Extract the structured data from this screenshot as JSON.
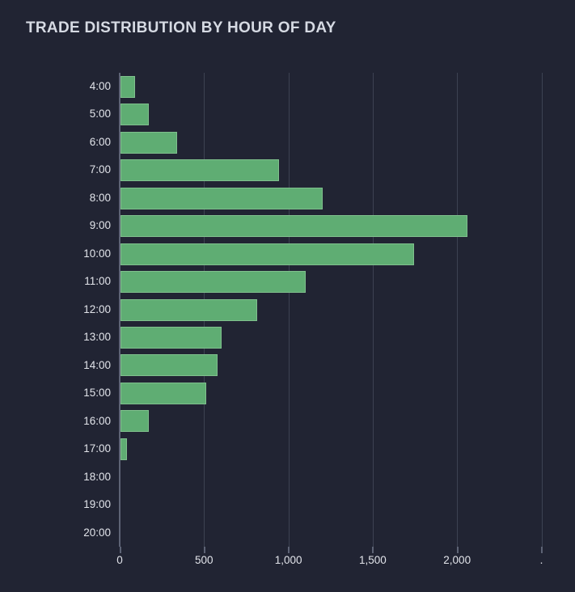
{
  "title": "TRADE DISTRIBUTION BY HOUR OF DAY",
  "chart_data": {
    "type": "bar",
    "orientation": "horizontal",
    "title": "TRADE DISTRIBUTION BY HOUR OF DAY",
    "categories": [
      "4:00",
      "5:00",
      "6:00",
      "7:00",
      "8:00",
      "9:00",
      "10:00",
      "11:00",
      "12:00",
      "13:00",
      "14:00",
      "15:00",
      "16:00",
      "17:00",
      "18:00",
      "19:00",
      "20:00"
    ],
    "values": [
      85,
      170,
      335,
      940,
      1200,
      2055,
      1740,
      1100,
      810,
      600,
      575,
      510,
      170,
      40,
      0,
      0,
      0
    ],
    "xlabel": "",
    "ylabel": "",
    "xlim": [
      0,
      2500
    ],
    "xticks": [
      {
        "value": 0,
        "label": "0"
      },
      {
        "value": 500,
        "label": "500"
      },
      {
        "value": 1000,
        "label": "1,000"
      },
      {
        "value": 1500,
        "label": "1,500"
      },
      {
        "value": 2000,
        "label": "2,000"
      },
      {
        "value": 2500,
        "label": "."
      }
    ],
    "grid": true,
    "legend": false
  },
  "colors": {
    "background": "#212433",
    "bar_fill": "#5fad73",
    "bar_border": "#7fc08d",
    "gridline": "#3d4252",
    "axis_line": "#5d6375",
    "tick_text": "#e2e4ea",
    "title_text": "#d6dae3"
  }
}
